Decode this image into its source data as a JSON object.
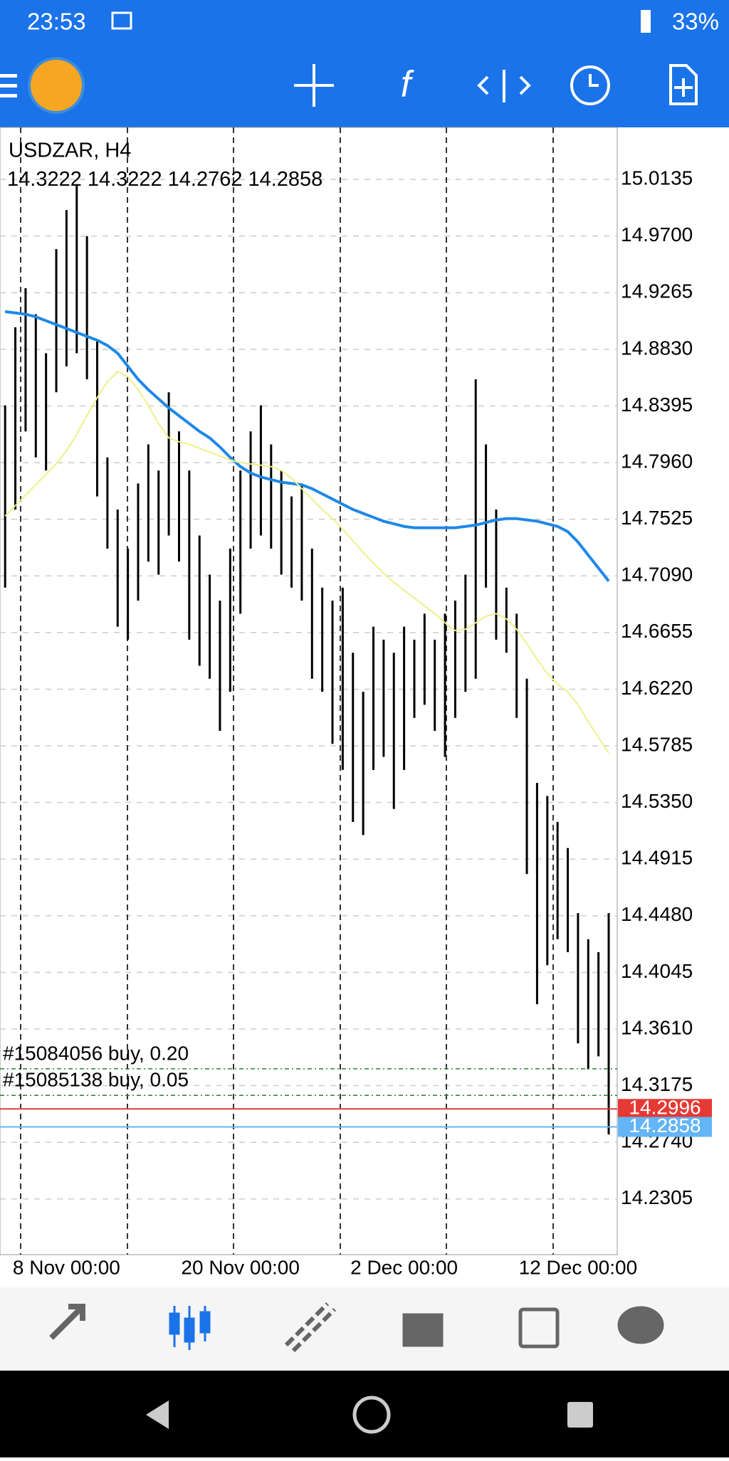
{
  "status_bar": {
    "time": "23:53",
    "battery": "33%"
  },
  "chart_data": {
    "type": "ohlc",
    "title": "USDZAR, H4",
    "ohlc_values": [
      14.3222,
      14.3222,
      14.2762,
      14.2858
    ],
    "categories": [
      null,
      null,
      null,
      null,
      null,
      null,
      "8 Nov 00:00",
      null,
      null,
      null,
      null,
      null,
      null,
      null,
      null,
      null,
      null,
      null,
      null,
      null,
      null,
      null,
      null,
      "20 Nov 00:00",
      null,
      null,
      null,
      null,
      null,
      null,
      null,
      null,
      null,
      null,
      null,
      null,
      null,
      null,
      null,
      "2 Dec 00:00",
      null,
      null,
      null,
      null,
      null,
      null,
      null,
      null,
      null,
      null,
      null,
      null,
      null,
      null,
      null,
      null,
      "12 Dec 00:00",
      null,
      null,
      null
    ],
    "high": [
      14.84,
      14.9,
      14.93,
      14.91,
      14.88,
      14.96,
      14.99,
      15.01,
      14.97,
      14.89,
      14.8,
      14.76,
      14.73,
      14.78,
      14.81,
      14.79,
      14.85,
      14.82,
      14.79,
      14.74,
      14.71,
      14.69,
      14.73,
      14.79,
      14.82,
      14.84,
      14.81,
      14.79,
      14.77,
      14.78,
      14.73,
      14.7,
      14.69,
      14.7,
      14.65,
      14.62,
      14.67,
      14.66,
      14.65,
      14.67,
      14.66,
      14.68,
      14.66,
      14.68,
      14.69,
      14.71,
      14.86,
      14.81,
      14.76,
      14.7,
      14.68,
      14.63,
      14.55,
      14.54,
      14.52,
      14.5,
      14.45,
      14.43,
      14.42,
      14.45
    ],
    "low": [
      14.7,
      14.76,
      14.82,
      14.8,
      14.79,
      14.85,
      14.87,
      14.88,
      14.86,
      14.77,
      14.73,
      14.67,
      14.66,
      14.69,
      14.72,
      14.71,
      14.74,
      14.72,
      14.66,
      14.64,
      14.63,
      14.59,
      14.62,
      14.68,
      14.73,
      14.74,
      14.73,
      14.71,
      14.7,
      14.69,
      14.63,
      14.62,
      14.58,
      14.56,
      14.52,
      14.51,
      14.56,
      14.57,
      14.53,
      14.56,
      14.6,
      14.61,
      14.59,
      14.57,
      14.6,
      14.62,
      14.63,
      14.7,
      14.66,
      14.65,
      14.6,
      14.48,
      14.38,
      14.41,
      14.43,
      14.42,
      14.35,
      14.33,
      14.34,
      14.28
    ],
    "series": [
      {
        "color": "#1e88e5",
        "values": [
          14.912,
          14.911,
          14.91,
          14.908,
          14.905,
          14.902,
          14.899,
          14.896,
          14.893,
          14.89,
          14.886,
          14.88,
          14.87,
          14.86,
          14.852,
          14.845,
          14.838,
          14.832,
          14.826,
          14.82,
          14.815,
          14.808,
          14.8,
          14.793,
          14.788,
          14.785,
          14.783,
          14.781,
          14.78,
          14.779,
          14.776,
          14.772,
          14.768,
          14.764,
          14.76,
          14.757,
          14.754,
          14.751,
          14.749,
          14.747,
          14.746,
          14.746,
          14.746,
          14.746,
          14.746,
          14.747,
          14.748,
          14.75,
          14.752,
          14.753,
          14.753,
          14.752,
          14.751,
          14.749,
          14.747,
          14.743,
          14.735,
          14.725,
          14.715,
          14.705
        ]
      },
      {
        "color": "#eef08a",
        "values": [
          14.755,
          14.763,
          14.771,
          14.779,
          14.787,
          14.795,
          14.805,
          14.818,
          14.832,
          14.846,
          14.858,
          14.866,
          14.862,
          14.852,
          14.84,
          14.826,
          14.815,
          14.812,
          14.81,
          14.807,
          14.804,
          14.801,
          14.798,
          14.796,
          14.795,
          14.794,
          14.793,
          14.79,
          14.784,
          14.776,
          14.768,
          14.76,
          14.753,
          14.745,
          14.736,
          14.727,
          14.719,
          14.711,
          14.704,
          14.698,
          14.692,
          14.686,
          14.68,
          14.673,
          14.667,
          14.668,
          14.673,
          14.678,
          14.68,
          14.676,
          14.668,
          14.657,
          14.645,
          14.634,
          14.626,
          14.62,
          14.61,
          14.597,
          14.585,
          14.573
        ]
      }
    ],
    "ylim": [
      14.1877,
      15.0535
    ],
    "yticks": [
      15.0135,
      {
        "value": 14.97,
        "label": "14.9700"
      },
      14.9265,
      {
        "value": 14.883,
        "label": "14.8830"
      },
      14.8395,
      {
        "value": 14.796,
        "label": "14.7960"
      },
      14.7525,
      {
        "value": 14.709,
        "label": "14.7090"
      },
      14.6655,
      {
        "value": 14.622,
        "label": "14.6220"
      },
      14.5785,
      {
        "value": 14.535,
        "label": "14.5350"
      },
      14.4915,
      {
        "value": 14.448,
        "label": "14.4480"
      },
      14.4045,
      {
        "value": 14.361,
        "label": "14.3610"
      },
      14.3175,
      {
        "value": 14.274,
        "label": "14.2740"
      },
      14.2305
    ],
    "grid": true,
    "orders": [
      {
        "label": "#15084056 buy, 0.20",
        "value": 14.3304
      },
      {
        "label": "#15085138 buy, 0.05",
        "value": 14.31
      }
    ],
    "price_lines": [
      {
        "value": 14.2996,
        "color": "#e53935"
      },
      {
        "value": 14.2858,
        "color": "#64b5f6"
      }
    ]
  }
}
